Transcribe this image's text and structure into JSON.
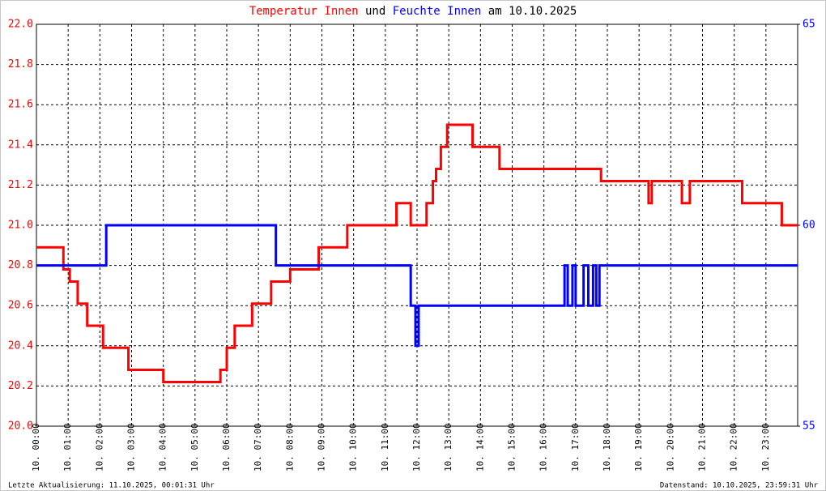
{
  "chart_data": {
    "type": "line",
    "title_date": "am 10.10.2025",
    "title_joiner": "und",
    "footer_left": "Letzte Aktualisierung: 11.10.2025, 00:01:31 Uhr",
    "footer_right": "Datenstand: 10.10.2025, 23:59:31 Uhr",
    "grid": true,
    "xlim": [
      0,
      24
    ],
    "xticks": [
      {
        "value": 0,
        "label": "10. 00:00"
      },
      {
        "value": 1,
        "label": "10. 01:00"
      },
      {
        "value": 2,
        "label": "10. 02:00"
      },
      {
        "value": 3,
        "label": "10. 03:00"
      },
      {
        "value": 4,
        "label": "10. 04:00"
      },
      {
        "value": 5,
        "label": "10. 05:00"
      },
      {
        "value": 6,
        "label": "10. 06:00"
      },
      {
        "value": 7,
        "label": "10. 07:00"
      },
      {
        "value": 8,
        "label": "10. 08:00"
      },
      {
        "value": 9,
        "label": "10. 09:00"
      },
      {
        "value": 10,
        "label": "10. 10:00"
      },
      {
        "value": 11,
        "label": "10. 11:00"
      },
      {
        "value": 12,
        "label": "10. 12:00"
      },
      {
        "value": 13,
        "label": "10. 13:00"
      },
      {
        "value": 14,
        "label": "10. 14:00"
      },
      {
        "value": 15,
        "label": "10. 15:00"
      },
      {
        "value": 16,
        "label": "10. 16:00"
      },
      {
        "value": 17,
        "label": "10. 17:00"
      },
      {
        "value": 18,
        "label": "10. 18:00"
      },
      {
        "value": 19,
        "label": "10. 19:00"
      },
      {
        "value": 20,
        "label": "10. 20:00"
      },
      {
        "value": 21,
        "label": "10. 21:00"
      },
      {
        "value": 22,
        "label": "10. 22:00"
      },
      {
        "value": 23,
        "label": "10. 23:00"
      }
    ],
    "ylim": [
      20,
      22
    ],
    "yticks": [
      {
        "value": 20,
        "label": "20.0"
      },
      20.2,
      20.4,
      20.6,
      20.8,
      {
        "value": 21,
        "label": "21.0"
      },
      21.2,
      21.4,
      21.6,
      21.8,
      {
        "value": 22,
        "label": "22.0"
      }
    ],
    "y2lim": [
      55,
      65
    ],
    "y2ticks": [
      55,
      60,
      65
    ],
    "series": [
      {
        "name": "Temperatur Innen",
        "color": "#ff0000",
        "x": [
          0,
          0.85,
          0.85,
          1.05,
          1.05,
          1.3,
          1.3,
          1.6,
          1.6,
          2.1,
          2.1,
          2.9,
          2.9,
          4.0,
          4.0,
          5.8,
          5.8,
          6.0,
          6.0,
          6.25,
          6.25,
          6.8,
          6.8,
          7.4,
          7.4,
          8.0,
          8.0,
          8.9,
          8.9,
          9.8,
          9.8,
          11.35,
          11.35,
          11.8,
          11.8,
          12.3,
          12.3,
          12.5,
          12.5,
          12.6,
          12.6,
          12.75,
          12.75,
          12.95,
          12.95,
          13.75,
          13.75,
          14.6,
          14.6,
          17.8,
          17.8,
          19.3,
          19.3,
          19.4,
          19.4,
          20.35,
          20.35,
          20.6,
          20.6,
          22.25,
          22.25,
          23.5,
          23.5,
          24
        ],
        "values": [
          20.89,
          20.89,
          20.78,
          20.78,
          20.72,
          20.72,
          20.61,
          20.61,
          20.5,
          20.5,
          20.39,
          20.39,
          20.28,
          20.28,
          20.22,
          20.22,
          20.28,
          20.28,
          20.39,
          20.39,
          20.5,
          20.5,
          20.61,
          20.61,
          20.72,
          20.72,
          20.78,
          20.78,
          20.89,
          20.89,
          21,
          21,
          21.11,
          21.11,
          21,
          21,
          21.11,
          21.11,
          21.22,
          21.22,
          21.28,
          21.28,
          21.39,
          21.39,
          21.5,
          21.5,
          21.39,
          21.39,
          21.28,
          21.28,
          21.22,
          21.22,
          21.11,
          21.11,
          21.22,
          21.22,
          21.11,
          21.11,
          21.22,
          21.22,
          21.11,
          21.11,
          21,
          21
        ]
      },
      {
        "name": "Feuchte Innen",
        "color": "#0000ff",
        "axis": "y2",
        "x": [
          0,
          2.2,
          2.2,
          7.55,
          7.55,
          11.8,
          11.8,
          11.95,
          11.95,
          12.05,
          12.05,
          16.65,
          16.65,
          16.75,
          16.75,
          16.9,
          16.9,
          17.0,
          17.0,
          17.25,
          17.25,
          17.4,
          17.4,
          17.55,
          17.55,
          17.65,
          17.65,
          17.75,
          17.75,
          24
        ],
        "values": [
          59,
          59,
          60,
          60,
          59,
          59,
          58,
          58,
          57,
          57,
          58,
          58,
          59,
          59,
          58,
          58,
          59,
          59,
          58,
          58,
          59,
          59,
          58,
          58,
          59,
          59,
          58,
          58,
          59,
          59
        ]
      }
    ]
  }
}
